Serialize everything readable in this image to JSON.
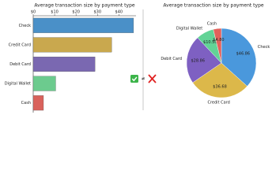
{
  "chart_data": [
    {
      "type": "bar",
      "orientation": "horizontal",
      "title": "Average transaction size by payment type",
      "categories": [
        "Check",
        "Credit Card",
        "Debit Card",
        "Digital Wallet",
        "Cash"
      ],
      "values": [
        46.86,
        36.68,
        28.86,
        10.5,
        4.8
      ],
      "colors": [
        "#4a90c8",
        "#c9a84e",
        "#7a68b1",
        "#6ccb8e",
        "#d9625c"
      ],
      "xlim": [
        0,
        48
      ],
      "xticks": [
        {
          "value": 0,
          "label": "$0"
        },
        {
          "value": 10,
          "label": "$10"
        },
        {
          "value": 20,
          "label": "$20"
        },
        {
          "value": 30,
          "label": "$30"
        },
        {
          "value": 40,
          "label": "$40"
        }
      ]
    },
    {
      "type": "pie",
      "title": "Average transaction size by payment type",
      "categories": [
        "Check",
        "Credit Card",
        "Debit Card",
        "Digital Wallet",
        "Cash"
      ],
      "values": [
        46.86,
        36.68,
        28.86,
        10.5,
        4.8
      ],
      "value_labels": [
        "$46.86",
        "$36.68",
        "$28.86",
        "$10.50",
        "$4.80"
      ],
      "colors": [
        "#4a98dc",
        "#dcb84a",
        "#7e60c2",
        "#62d396",
        "#e3615b"
      ]
    }
  ],
  "comparison_symbol": "≠"
}
